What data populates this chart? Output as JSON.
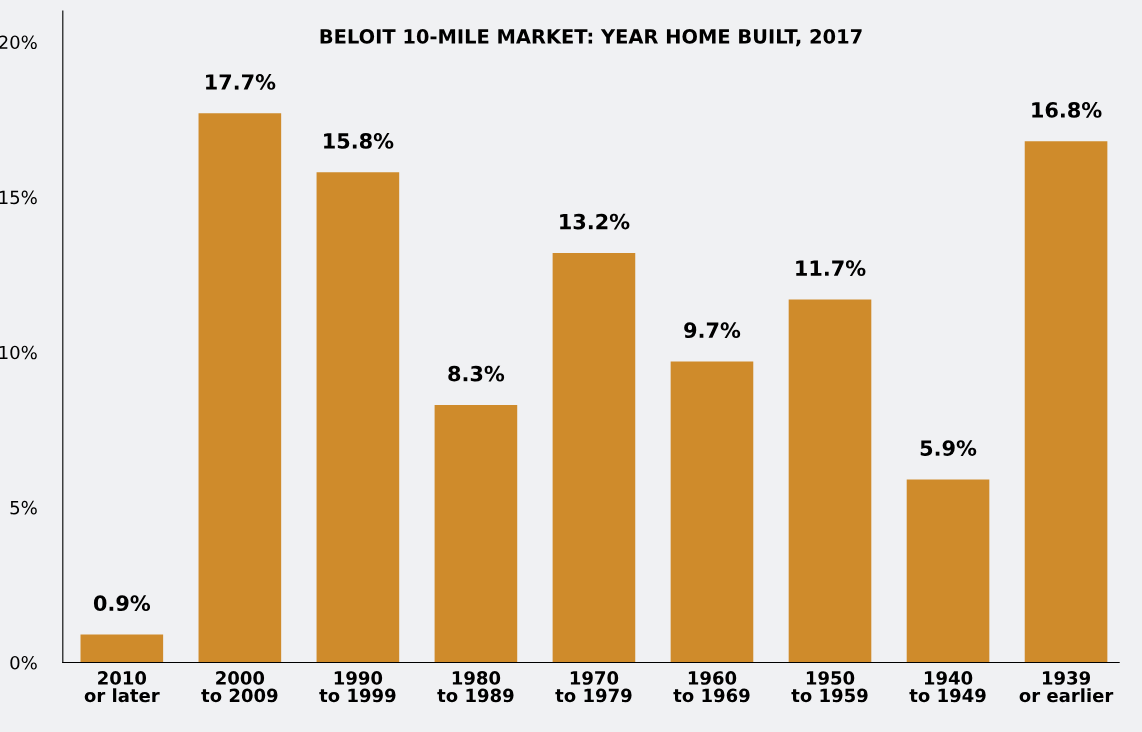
{
  "chart_data": {
    "type": "bar",
    "title": "BELOIT 10-MILE MARKET: YEAR HOME BUILT, 2017",
    "categories": [
      "2010\nor later",
      "2000\nto 2009",
      "1990\nto 1999",
      "1980\nto 1989",
      "1970\nto 1979",
      "1960\nto 1969",
      "1950\nto 1959",
      "1940\nto 1949",
      "1939\nor earlier"
    ],
    "values": [
      0.9,
      17.7,
      15.8,
      8.3,
      13.2,
      9.7,
      11.7,
      5.9,
      16.8
    ],
    "color": "#cf8b2b",
    "value_labels": [
      "0.9%",
      "17.7%",
      "15.8%",
      "8.3%",
      "13.2%",
      "9.7%",
      "11.7%",
      "5.9%",
      "16.8%"
    ],
    "ylim": [
      0,
      21
    ],
    "yticks": [
      {
        "value": 0,
        "label": "0%"
      },
      {
        "value": 5,
        "label": "5%"
      },
      {
        "value": 10,
        "label": "10%"
      },
      {
        "value": 15,
        "label": "15%"
      },
      {
        "value": 20,
        "label": "20%"
      }
    ],
    "grid": false,
    "legend": false
  }
}
